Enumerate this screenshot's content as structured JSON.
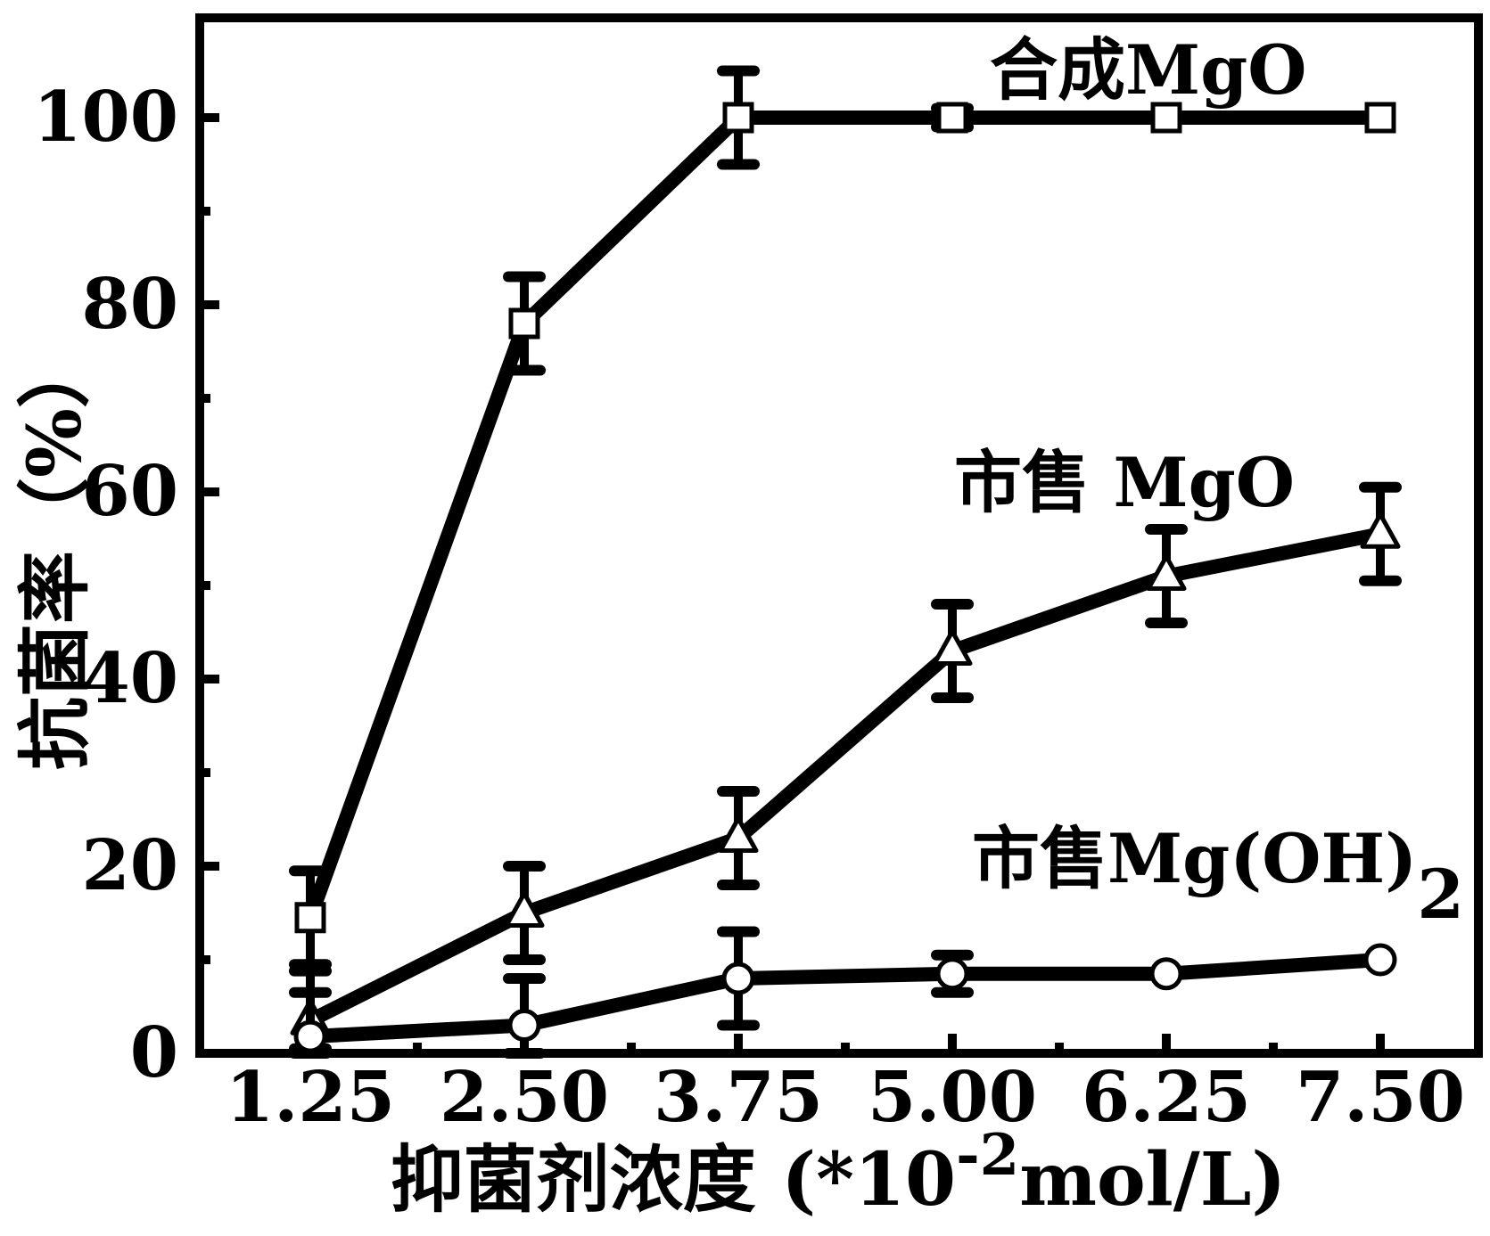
{
  "chart_data": {
    "type": "line",
    "xlabel": "抑菌剂浓度 (*10",
    "xlabel_sup": "-2",
    "xlabel_tail": "mol/L)",
    "ylabel": "抗菌率（%）",
    "x": [
      1.25,
      2.5,
      3.75,
      5.0,
      6.25,
      7.5
    ],
    "xticks": [
      "1.25",
      "2.50",
      "3.75",
      "5.00",
      "6.25",
      "7.50"
    ],
    "yticks": [
      "0",
      "20",
      "40",
      "60",
      "80",
      "100"
    ],
    "ylim": [
      0,
      110
    ],
    "xlim": [
      0.625,
      8.125
    ],
    "grid": false,
    "series": [
      {
        "name": "合成MgO",
        "marker": "square",
        "values": [
          14.5,
          78,
          100,
          100,
          100,
          100
        ],
        "errors": [
          5,
          5,
          5,
          1,
          0,
          0
        ]
      },
      {
        "name": "市售 MgO",
        "marker": "triangle",
        "values": [
          3.5,
          15,
          23,
          43,
          51,
          55.5
        ],
        "errors": [
          3,
          5,
          5,
          5,
          5,
          5
        ]
      },
      {
        "name": "市售Mg(OH)",
        "name_sub": "2",
        "marker": "circle",
        "values": [
          1.8,
          3,
          8,
          8.5,
          8.5,
          10
        ],
        "errors": [
          7,
          5,
          5,
          2,
          0,
          0
        ]
      }
    ]
  }
}
